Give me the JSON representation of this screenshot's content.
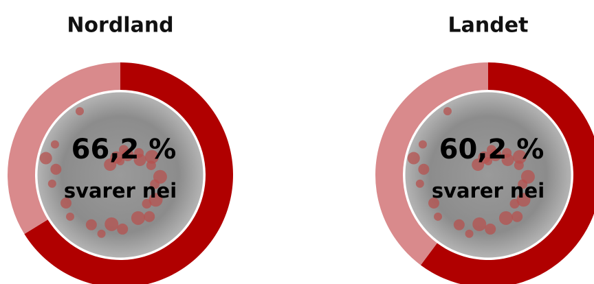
{
  "chart_data": [
    {
      "type": "donut",
      "title": "Nordland",
      "values": [
        66.2,
        33.8
      ],
      "value_labels": [
        "66,2 %",
        null
      ],
      "center_text": "svarer nei",
      "colors": [
        "#b00000",
        "#d98a8c"
      ]
    },
    {
      "type": "donut",
      "title": "Landet",
      "values": [
        60.2,
        39.8
      ],
      "value_labels": [
        "60,2 %",
        null
      ],
      "center_text": "svarer nei",
      "colors": [
        "#b00000",
        "#d98a8c"
      ]
    }
  ]
}
